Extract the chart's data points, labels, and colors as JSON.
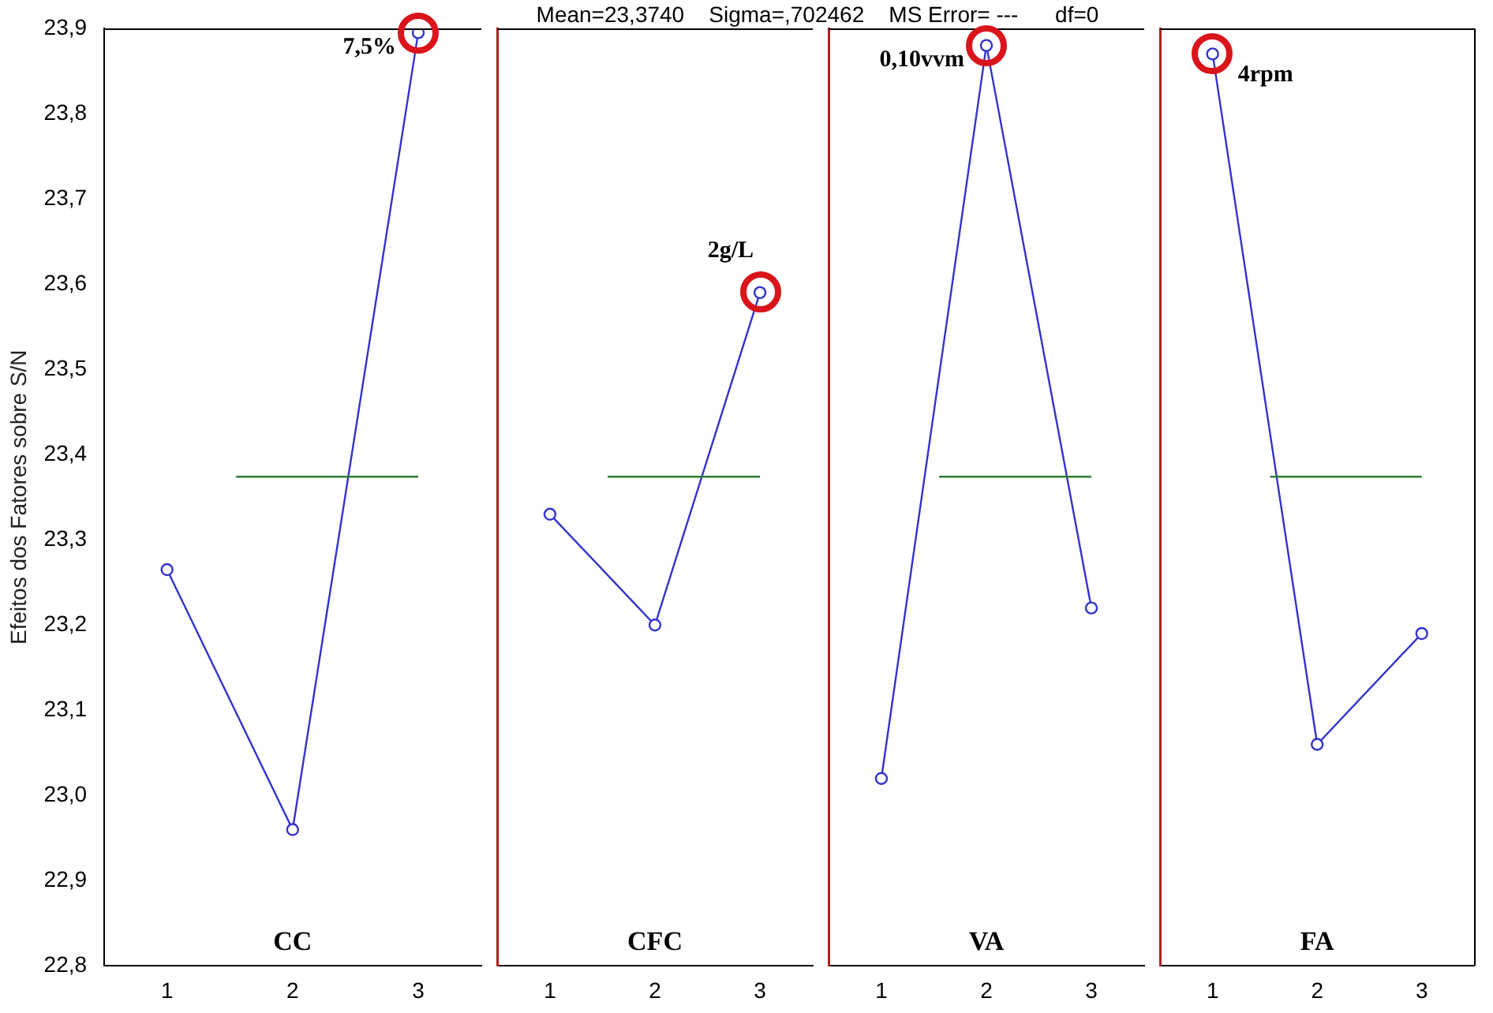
{
  "chart_data": [
    {
      "type": "other",
      "title": "Mean=23,3740    Sigma=,702462    MS Error= ---      df=0"
    },
    {
      "type": "line",
      "ylabel": "Efeitos dos Fatores sobre S/N",
      "categories": [
        "1",
        "2",
        "3"
      ],
      "series": [
        {
          "color": "#3333cc",
          "values": [
            23.265,
            22.96,
            23.895
          ]
        }
      ],
      "ylim": [
        22.8,
        23.9
      ],
      "yticks": [
        {
          "value": 22.8,
          "label": "22,8"
        },
        {
          "value": 22.9,
          "label": "22,9"
        },
        {
          "value": 23.0,
          "label": "23,0"
        },
        {
          "value": 23.1,
          "label": "23,1"
        },
        {
          "value": 23.2,
          "label": "23,2"
        },
        {
          "value": 23.3,
          "label": "23,3"
        },
        {
          "value": 23.4,
          "label": "23,4"
        },
        {
          "value": 23.5,
          "label": "23,5"
        },
        {
          "value": 23.6,
          "label": "23,6"
        },
        {
          "value": 23.7,
          "label": "23,7"
        },
        {
          "value": 23.8,
          "label": "23,8"
        },
        {
          "value": 23.9,
          "label": "23,9"
        }
      ],
      "ref_lines": [
        {
          "axis": "y",
          "value": 23.374,
          "color": "#2e7d32"
        }
      ],
      "marker": "circle",
      "grid": false,
      "legend": false,
      "annotations": [
        "CC",
        {
          "text": "7,5%",
          "x": "3",
          "y": 23.895
        }
      ]
    },
    {
      "type": "line",
      "categories": [
        "1",
        "2",
        "3"
      ],
      "series": [
        {
          "color": "#3333cc",
          "values": [
            23.33,
            23.2,
            23.59
          ]
        }
      ],
      "ylim": [
        22.8,
        23.9
      ],
      "tick_labels": "x",
      "ref_lines": [
        {
          "axis": "y",
          "value": 23.374,
          "color": "#2e7d32"
        }
      ],
      "marker": "circle",
      "grid": false,
      "legend": false,
      "annotations": [
        "CFC",
        {
          "text": "2g/L",
          "x": "3",
          "y": 23.59
        }
      ]
    },
    {
      "type": "line",
      "categories": [
        "1",
        "2",
        "3"
      ],
      "series": [
        {
          "color": "#3333cc",
          "values": [
            23.02,
            23.88,
            23.22
          ]
        }
      ],
      "ylim": [
        22.8,
        23.9
      ],
      "tick_labels": "x",
      "ref_lines": [
        {
          "axis": "y",
          "value": 23.374,
          "color": "#2e7d32"
        }
      ],
      "marker": "circle",
      "grid": false,
      "legend": false,
      "annotations": [
        "VA",
        {
          "text": "0,10vvm",
          "x": "2",
          "y": 23.88
        }
      ]
    },
    {
      "type": "line",
      "categories": [
        "1",
        "2",
        "3"
      ],
      "series": [
        {
          "color": "#3333cc",
          "values": [
            23.87,
            23.06,
            23.19
          ]
        }
      ],
      "ylim": [
        22.8,
        23.9
      ],
      "tick_labels": "x",
      "ref_lines": [
        {
          "axis": "y",
          "value": 23.374,
          "color": "#2e7d32"
        }
      ],
      "marker": "circle",
      "grid": false,
      "legend": false,
      "annotations": [
        "FA",
        {
          "text": "4rpm",
          "x": "1",
          "y": 23.87
        }
      ]
    }
  ]
}
